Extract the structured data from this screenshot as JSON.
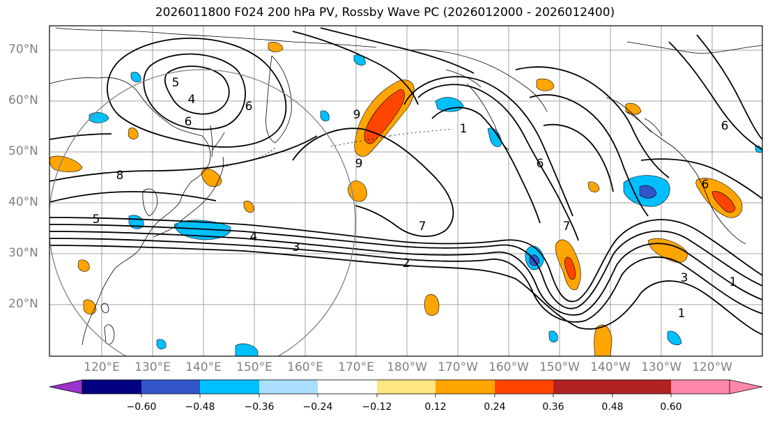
{
  "title": "2026011800 F024 200 hPa PV, Rossby Wave PC (2026012000 - 2026012400)",
  "lat_labels": [
    "70°N",
    "60°N",
    "50°N",
    "40°N",
    "30°N",
    "20°N"
  ],
  "lon_labels": [
    "120°E",
    "130°E",
    "140°E",
    "150°E",
    "160°E",
    "170°E",
    "180°W",
    "170°W",
    "160°W",
    "150°W",
    "140°W",
    "130°W",
    "120°W"
  ],
  "contour_labels": [
    "4",
    "5",
    "6",
    "8",
    "6",
    "5",
    "4",
    "3",
    "2",
    "7",
    "6",
    "7",
    "1",
    "1",
    "1",
    "3",
    "6",
    "6",
    "9",
    "9"
  ],
  "colorbar": {
    "colors": [
      "#9933cc",
      "#000080",
      "#3355cc",
      "#00bfff",
      "#aadfff",
      "#ffffff",
      "#ffe680",
      "#ffa500",
      "#ff4500",
      "#b22222",
      "#ff88aa"
    ],
    "ticks": [
      "−0.60",
      "−0.48",
      "−0.36",
      "−0.24",
      "−0.12",
      "0.12",
      "0.24",
      "0.36",
      "0.48",
      "0.60"
    ]
  },
  "palette": {
    "grid": "#a0a0a0",
    "contour": "#000000",
    "coast": "#000000",
    "circle": "#808080"
  }
}
